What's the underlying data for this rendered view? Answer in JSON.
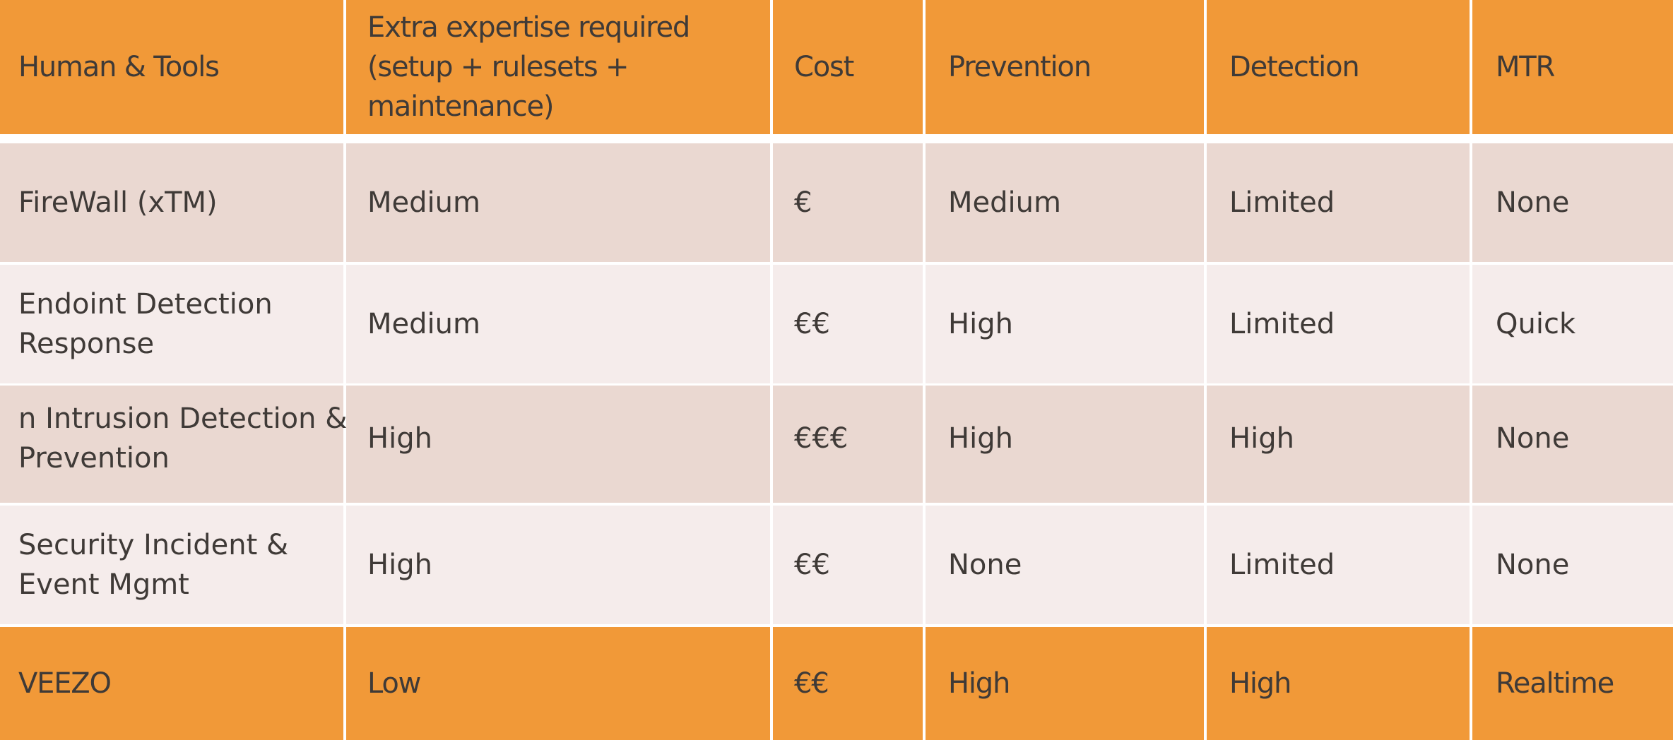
{
  "header": {
    "col_tool": "Human & Tools",
    "col_expertise_title": "Extra expertise required",
    "col_expertise_line2": "(setup + rulesets +",
    "col_expertise_line3": "maintenance)",
    "col_cost": "Cost",
    "col_prevention": "Prevention",
    "col_detection": "Detection",
    "col_mtr": "MTR"
  },
  "rows": [
    {
      "tool_line1": "FireWall (xTM)",
      "tool_line2": "",
      "expertise": "Medium",
      "cost": "€",
      "prevention": "Medium",
      "detection": "Limited",
      "mtr": "None"
    },
    {
      "tool_line1": "Endoint Detection",
      "tool_line2": "Response",
      "expertise": "Medium",
      "cost": "€€",
      "prevention": "High",
      "detection": "Limited",
      "mtr": "Quick"
    },
    {
      "tool_line1": "n Intrusion Detection &",
      "tool_line2": "Prevention",
      "expertise": "High",
      "cost": "€€€",
      "prevention": "High",
      "detection": "High",
      "mtr": "None"
    },
    {
      "tool_line1": "Security Incident &",
      "tool_line2": "Event Mgmt",
      "expertise": "High",
      "cost": "€€",
      "prevention": "None",
      "detection": "Limited",
      "mtr": "None"
    }
  ],
  "footer": {
    "tool": "VEEZO",
    "expertise": "Low",
    "cost": "€€",
    "prevention": "High",
    "detection": "High",
    "mtr": "Realtime"
  },
  "colors": {
    "header_bg": "#f19938",
    "row_dark_bg": "#ead8d1",
    "row_light_bg": "#f5eceb",
    "text": "#3f3a37"
  }
}
